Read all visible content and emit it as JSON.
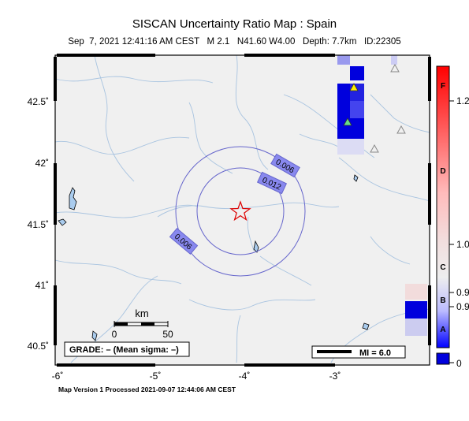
{
  "header": {
    "title": "SISCAN Uncertainty Ratio Map : Spain",
    "subtitle": "Sep  7, 2021 12:41:16 AM CEST   M 2.1   N41.60 W4.00   Depth: 7.7km   ID:22305"
  },
  "map": {
    "lat_ticks": [
      "42.5˚",
      "42˚",
      "41.5˚",
      "41˚",
      "40.5˚"
    ],
    "lon_ticks": [
      "-6˚",
      "-5˚",
      "-4˚",
      "-3˚"
    ],
    "contours": [
      {
        "label": "0.006"
      },
      {
        "label": "0.012"
      },
      {
        "label": "0.006"
      }
    ],
    "epicenter": {
      "lat": 41.6,
      "lon": -4.0,
      "symbol": "star-icon"
    },
    "scale_bar": {
      "unit": "km",
      "labels": [
        "0",
        "50"
      ]
    },
    "grade_label": "GRADE: – (Mean sigma: –)",
    "mi_legend": "MI = 6.0"
  },
  "colorbar": {
    "letters": [
      "F",
      "D",
      "C",
      "B",
      "A"
    ],
    "values": [
      "1.2",
      "1.0",
      "0.9",
      "0.9",
      "0"
    ]
  },
  "footer": {
    "version_text": "Map Version 1 Processed 2021-09-07 12:44:06 AM CEST"
  },
  "colors": {
    "land": "#f0f0f0",
    "river": "#a9c4e0",
    "contour": "#6666cc",
    "epicenter": "#dd0000"
  }
}
